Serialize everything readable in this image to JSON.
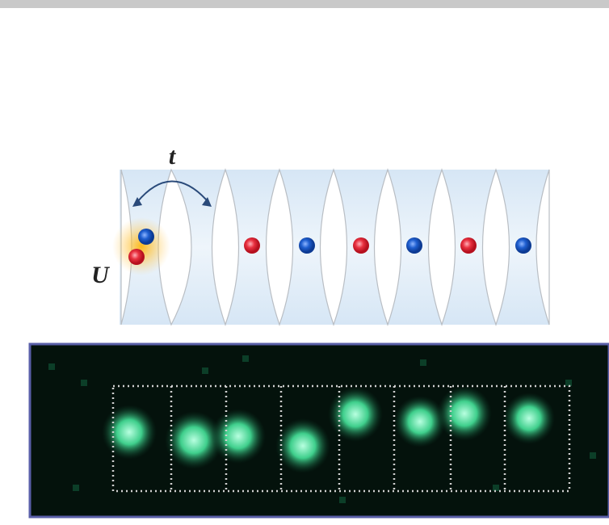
{
  "labels": {
    "tunneling": "t",
    "interaction": "U"
  }
}
